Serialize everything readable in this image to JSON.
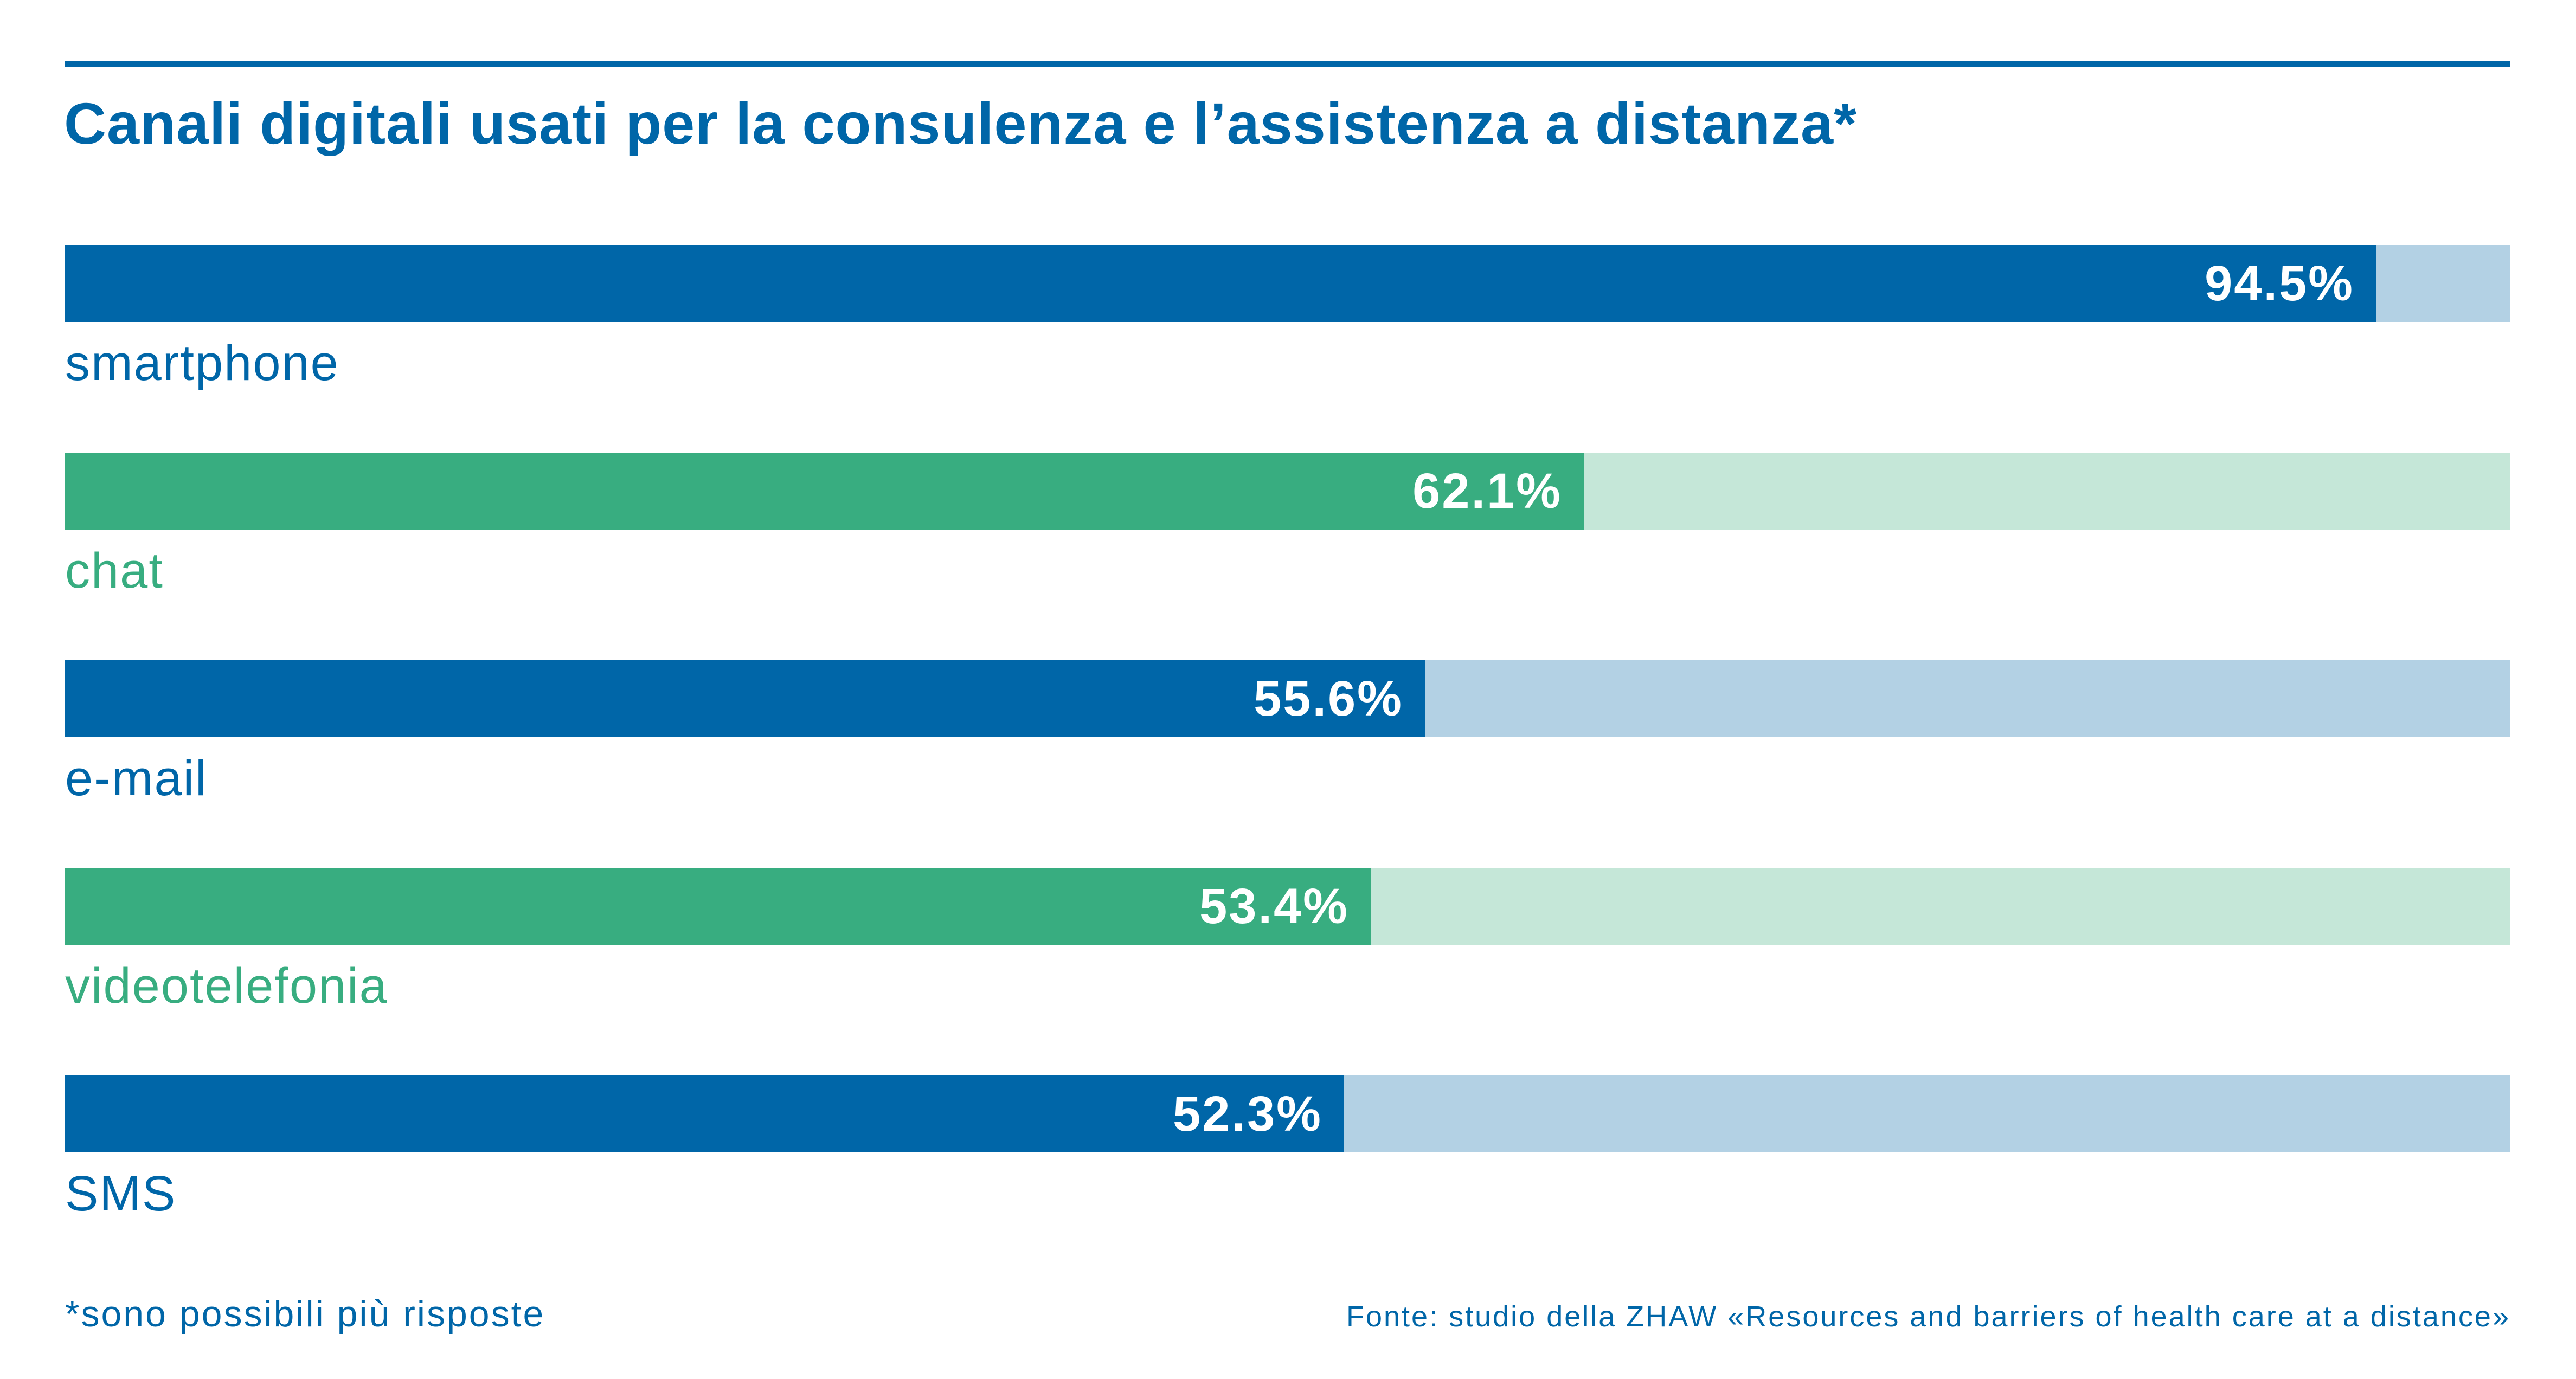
{
  "chart_data": {
    "type": "bar",
    "orientation": "horizontal",
    "title": "Canali digitali usati per la consulenza e l’assistenza a distanza*",
    "categories": [
      "smartphone",
      "chat",
      "e-mail",
      "videotelefonia",
      "SMS"
    ],
    "values": [
      94.5,
      62.1,
      55.6,
      53.4,
      52.3
    ],
    "value_labels": [
      "94.5%",
      "62.1%",
      "55.6%",
      "53.4%",
      "52.3%"
    ],
    "xlim": [
      0,
      100
    ],
    "unit": "%",
    "grid": false,
    "legend": "none",
    "colors": {
      "blue_fill": "#0066a8",
      "blue_track": "#b3d1e4",
      "green_fill": "#38ad80",
      "green_track": "#c5e7d8"
    },
    "bar_color_sequence": [
      "blue",
      "green",
      "blue",
      "green",
      "blue"
    ]
  },
  "footnote": "*sono possibili più risposte",
  "source": "Fonte: studio della ZHAW «Resources and barriers of health care at a distance»"
}
